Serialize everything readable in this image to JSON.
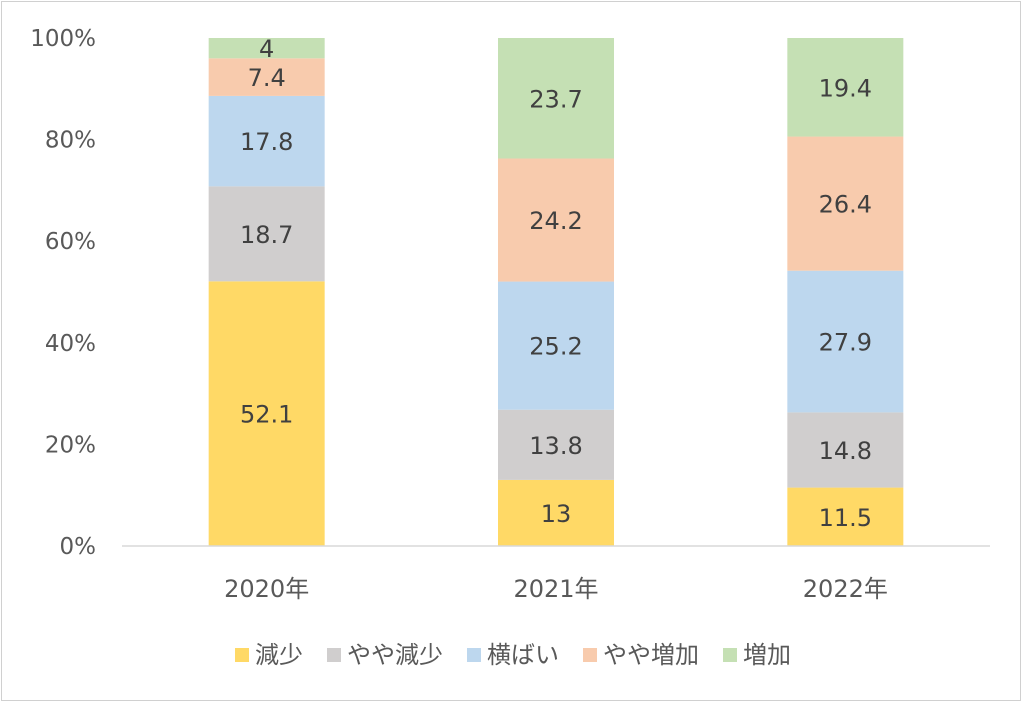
{
  "chart_data": {
    "type": "bar",
    "stacked": true,
    "percent_stacked": true,
    "categories": [
      "2020年",
      "2021年",
      "2022年"
    ],
    "series": [
      {
        "name": "減少",
        "color": "#FFD966",
        "values": [
          52.1,
          13,
          11.5
        ]
      },
      {
        "name": "やや減少",
        "color": "#D0CECE",
        "values": [
          18.7,
          13.8,
          14.8
        ]
      },
      {
        "name": "横ばい",
        "color": "#BDD7EE",
        "values": [
          17.8,
          25.2,
          27.9
        ]
      },
      {
        "name": "やや増加",
        "color": "#F8CBAD",
        "values": [
          7.4,
          24.2,
          26.4
        ]
      },
      {
        "name": "増加",
        "color": "#C5E0B4",
        "values": [
          4,
          23.7,
          19.4
        ]
      }
    ],
    "y_ticks": [
      "0%",
      "20%",
      "40%",
      "60%",
      "80%",
      "100%"
    ],
    "ylim": [
      0,
      100
    ],
    "grid": false,
    "legend_position": "bottom"
  }
}
